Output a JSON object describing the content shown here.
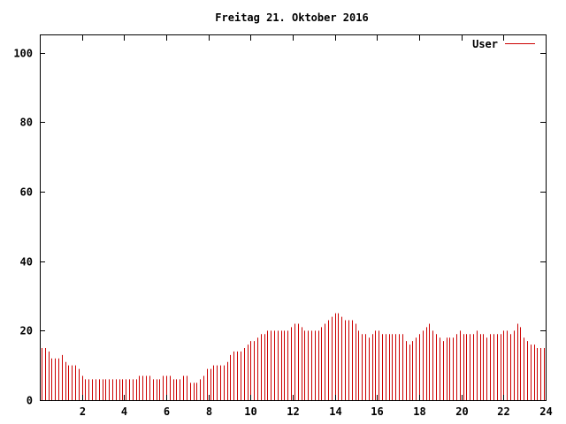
{
  "chart_data": {
    "type": "bar",
    "title": "Freitag 21. Oktober 2016",
    "xlabel": "",
    "ylabel": "",
    "xlim": [
      0,
      24
    ],
    "ylim": [
      0,
      105
    ],
    "grid": false,
    "legend_position": "top-right",
    "x_ticks": [
      2,
      4,
      6,
      8,
      10,
      12,
      14,
      16,
      18,
      20,
      22,
      24
    ],
    "y_ticks": [
      0,
      20,
      40,
      60,
      80,
      100
    ],
    "series": [
      {
        "name": "User",
        "color": "#cc0000",
        "values": [
          15,
          15,
          14,
          12,
          12,
          12,
          13,
          11,
          10,
          10,
          10,
          9,
          7,
          6,
          6,
          6,
          6,
          6,
          6,
          6,
          6,
          6,
          6,
          6,
          6,
          6,
          6,
          6,
          6,
          7,
          7,
          7,
          7,
          6,
          6,
          6,
          7,
          7,
          7,
          6,
          6,
          6,
          7,
          7,
          5,
          5,
          5,
          6,
          7,
          9,
          9,
          10,
          10,
          10,
          10,
          11,
          13,
          14,
          14,
          14,
          15,
          16,
          17,
          17,
          18,
          19,
          19,
          20,
          20,
          20,
          20,
          20,
          20,
          20,
          21,
          22,
          22,
          21,
          20,
          20,
          20,
          20,
          20,
          21,
          22,
          23,
          24,
          25,
          25,
          24,
          23,
          23,
          23,
          22,
          20,
          19,
          19,
          18,
          19,
          20,
          20,
          19,
          19,
          19,
          19,
          19,
          19,
          19,
          17,
          16,
          17,
          18,
          19,
          20,
          21,
          22,
          20,
          19,
          18,
          17,
          18,
          18,
          18,
          19,
          20,
          19,
          19,
          19,
          19,
          20,
          19,
          19,
          18,
          19,
          19,
          19,
          19,
          20,
          20,
          19,
          20,
          22,
          21,
          18,
          17,
          16,
          16,
          15,
          15,
          15
        ]
      }
    ]
  }
}
